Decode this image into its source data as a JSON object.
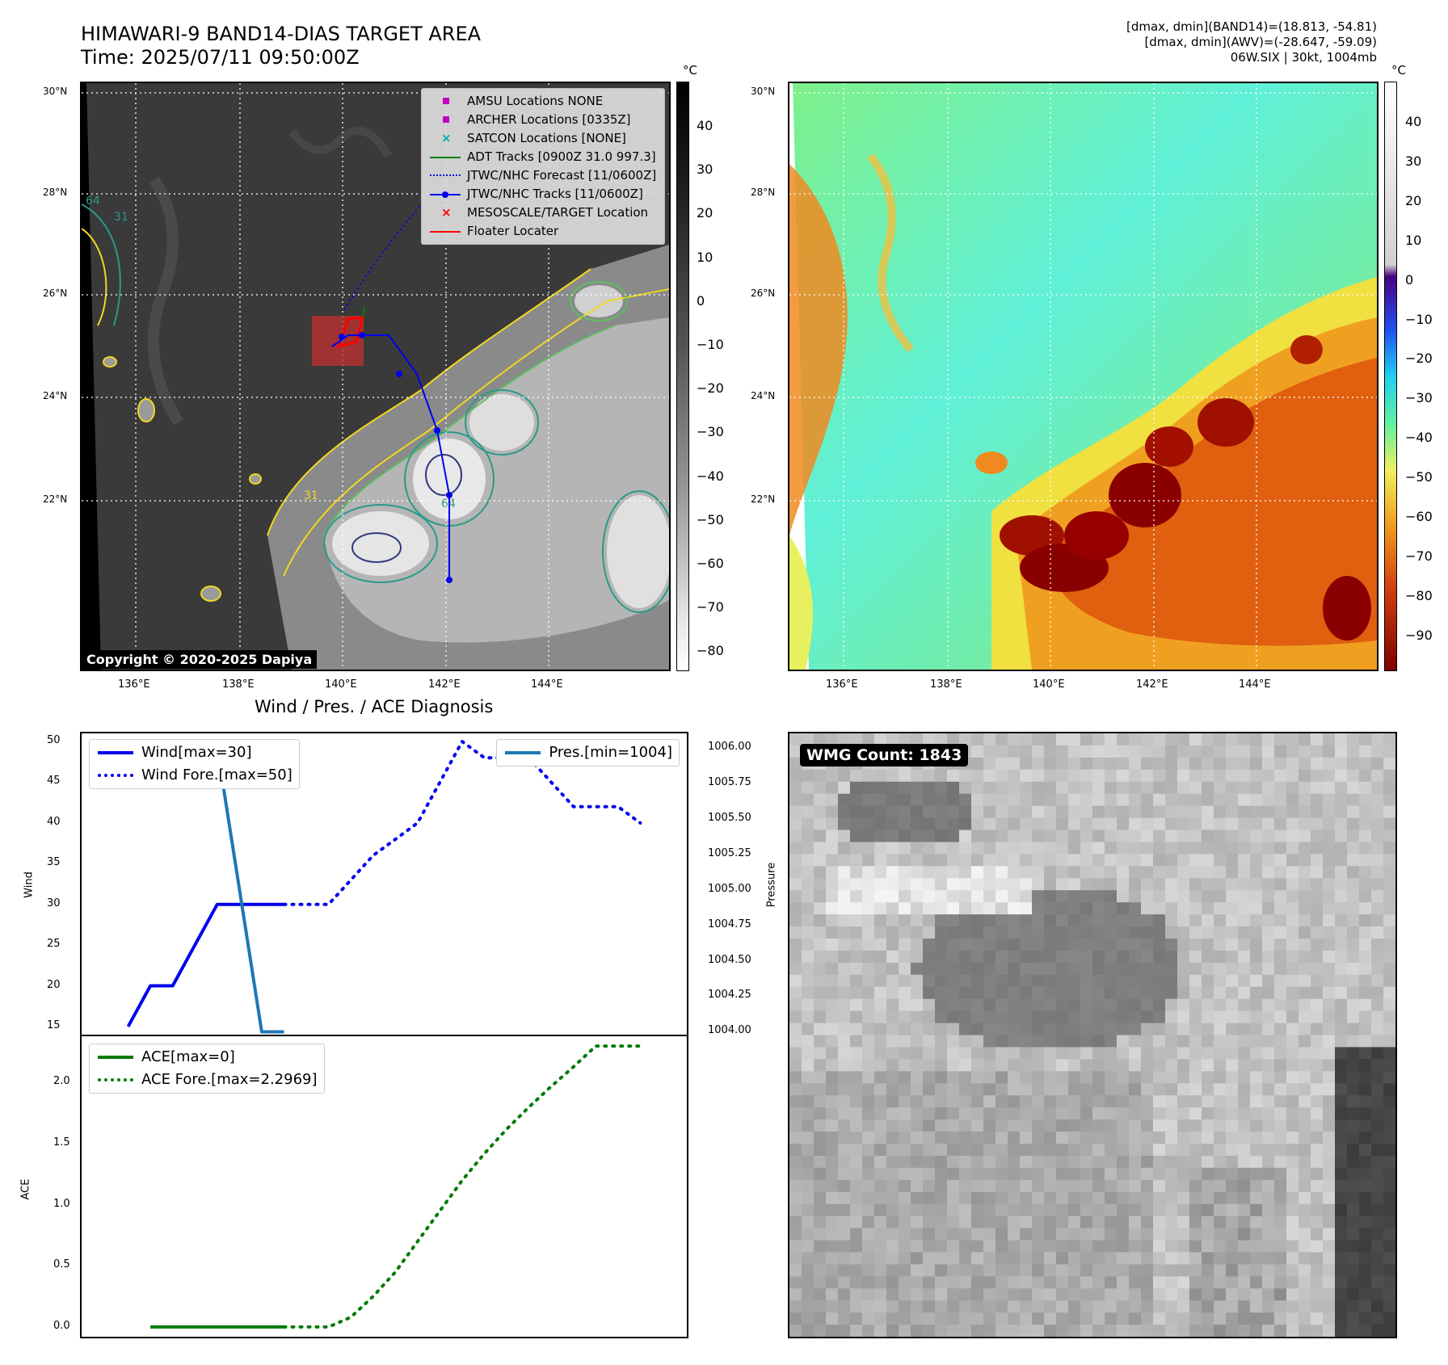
{
  "header": {
    "title_line1": "HIMAWARI-9 BAND14-DIAS TARGET AREA",
    "title_line2": "Time: 2025/07/11 09:50:00Z",
    "right_line1": "[dmax, dmin](BAND14)=(18.813, -54.81)",
    "right_line2": "[dmax, dmin](AWV)=(-28.647, -59.09)",
    "right_line3": "06W.SIX | 30kt, 1004mb"
  },
  "map": {
    "lat_ticks": [
      "30°N",
      "28°N",
      "26°N",
      "24°N",
      "22°N"
    ],
    "lon_ticks": [
      "136°E",
      "138°E",
      "140°E",
      "142°E",
      "144°E"
    ],
    "copyright": "Copyright © 2020-2025 Dapiya",
    "contour_labels": [
      "64",
      "31",
      "31",
      "64"
    ],
    "colors": {
      "ir_bg": "#3a3a3a",
      "cloud": "#d8d8d8",
      "contour_yellow": "#f0d820",
      "contour_green": "#5cc060",
      "contour_teal": "#2a9a8a",
      "contour_navy": "#303a80",
      "track": "#0000ee",
      "floater": "#ff0000",
      "adt": "#008000"
    },
    "legend": [
      {
        "label": "AMSU Locations NONE",
        "symbol": "square",
        "color": "#c000c0"
      },
      {
        "label": "ARCHER Locations [0335Z]",
        "symbol": "square",
        "color": "#c000c0"
      },
      {
        "label": "SATCON Locations [NONE]",
        "symbol": "x",
        "color": "#00b0b0"
      },
      {
        "label": "ADT Tracks [0900Z 31.0 997.3]",
        "symbol": "line",
        "color": "#008000"
      },
      {
        "label": "JTWC/NHC Forecast [11/0600Z]",
        "symbol": "dotted",
        "color": "#0000ee"
      },
      {
        "label": "JTWC/NHC Tracks [11/0600Z]",
        "symbol": "line-dot",
        "color": "#0000ee"
      },
      {
        "label": "MESOSCALE/TARGET Location",
        "symbol": "x",
        "color": "#ff0000"
      },
      {
        "label": "Floater Locater",
        "symbol": "line",
        "color": "#ff0000"
      }
    ]
  },
  "colorbar1": {
    "unit": "°C",
    "ticks": [
      "40",
      "30",
      "20",
      "10",
      "0",
      "−10",
      "−20",
      "−30",
      "−40",
      "−50",
      "−60",
      "−70",
      "−80"
    ]
  },
  "colorbar2": {
    "unit": "°C",
    "ticks": [
      "40",
      "30",
      "20",
      "10",
      "0",
      "−10",
      "−20",
      "−30",
      "−40",
      "−50",
      "−60",
      "−70",
      "−80",
      "−90"
    ]
  },
  "diag": {
    "title": "Wind / Pres. / ACE Diagnosis",
    "wind_label": "Wind",
    "pressure_label": "Pressure",
    "ace_label": "ACE",
    "wind_ticks": [
      "50",
      "45",
      "40",
      "35",
      "30",
      "25",
      "20",
      "15"
    ],
    "pres_ticks": [
      "1006.00",
      "1005.75",
      "1005.50",
      "1005.25",
      "1005.00",
      "1004.75",
      "1004.50",
      "1004.25",
      "1004.00"
    ],
    "ace_ticks": [
      "2.0",
      "1.5",
      "1.0",
      "0.5",
      "0.0"
    ],
    "legend_wind": "Wind[max=30]",
    "legend_wind_fore": "Wind Fore.[max=50]",
    "legend_pres": "Pres.[min=1004]",
    "legend_ace": "ACE[max=0]",
    "legend_ace_fore": "ACE Fore.[max=2.2969]",
    "colors": {
      "wind": "#0000ee",
      "pres": "#1f77b4",
      "ace": "#007a00"
    }
  },
  "chart_data": [
    {
      "type": "line",
      "ylabel": "Wind",
      "y2label": "Pressure",
      "ylim": [
        14,
        51
      ],
      "y2lim": [
        1003.98,
        1006.1
      ],
      "series": [
        {
          "name": "Wind[max=30]",
          "x": [
            0,
            1,
            2,
            3,
            4,
            5,
            6,
            7
          ],
          "values": [
            15,
            20,
            20,
            25,
            30,
            30,
            30,
            30
          ]
        },
        {
          "name": "Wind Fore.[max=50]",
          "x": [
            7,
            8,
            9,
            10,
            11,
            12,
            13,
            14,
            15,
            16,
            17,
            18,
            19,
            20,
            21,
            22,
            23
          ],
          "values": [
            30,
            30,
            30,
            33,
            36,
            38,
            40,
            45,
            50,
            48,
            48,
            48,
            45,
            42,
            42,
            42,
            40
          ]
        },
        {
          "name": "Pres.[min=1004]",
          "axis": "right",
          "x": [
            1,
            2,
            3,
            4,
            5,
            6,
            7
          ],
          "values": [
            1006.0,
            1006.0,
            1006.0,
            1006.0,
            1005.0,
            1004.0,
            1004.0
          ]
        }
      ]
    },
    {
      "type": "line",
      "ylabel": "ACE",
      "ylim": [
        -0.08,
        2.38
      ],
      "series": [
        {
          "name": "ACE[max=0]",
          "x": [
            1,
            2,
            3,
            4,
            5,
            6,
            7
          ],
          "values": [
            0,
            0,
            0,
            0,
            0,
            0,
            0
          ]
        },
        {
          "name": "ACE Fore.[max=2.2969]",
          "x": [
            7,
            8,
            9,
            10,
            11,
            12,
            13,
            14,
            15,
            16,
            17,
            18,
            19,
            20,
            21,
            22,
            23
          ],
          "values": [
            0,
            0,
            0,
            0.08,
            0.25,
            0.45,
            0.7,
            0.95,
            1.2,
            1.42,
            1.62,
            1.8,
            1.97,
            2.13,
            2.3,
            2.3,
            2.3
          ]
        }
      ]
    }
  ],
  "wmg": {
    "count_label": "WMG Count: 1843"
  }
}
